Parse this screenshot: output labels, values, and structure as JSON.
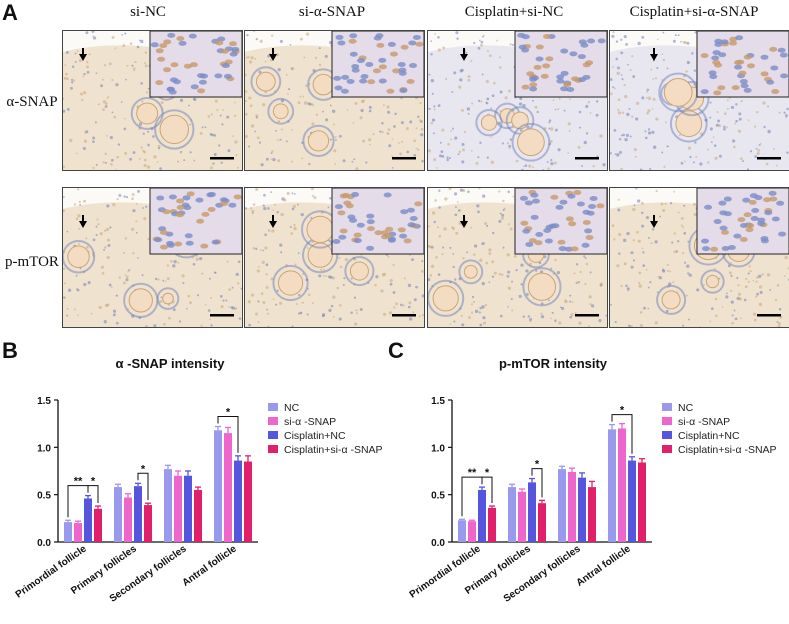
{
  "panel_a": {
    "letter": "A",
    "columns": [
      "si-NC",
      "si-α-SNAP",
      "Cisplatin+si-NC",
      "Cisplatin+si-α-SNAP"
    ],
    "rows": [
      "α-SNAP",
      "p-mTOR"
    ]
  },
  "panel_b": {
    "letter": "B"
  },
  "panel_c": {
    "letter": "C"
  },
  "colors": {
    "NC": "#9999ee",
    "si": "#ee66cc",
    "cisNC": "#5555dd",
    "cisSi": "#e0206a",
    "tissue_bg": "#efe3cf",
    "tissue_stain": "#c9a57a",
    "nuclei": "#6f7fb8"
  },
  "chart_data": [
    {
      "type": "bar",
      "title": "α -SNAP intensity",
      "categories": [
        "Primordial follicle",
        "Primary follicles",
        "Secondary follicles",
        "Antral follicle"
      ],
      "ylim": [
        0,
        1.5
      ],
      "yticks": [
        "0.0",
        "0.5",
        "1.0",
        "1.5"
      ],
      "series": [
        {
          "name": "NC",
          "values": [
            0.21,
            0.58,
            0.77,
            1.18
          ],
          "errors": [
            0.02,
            0.03,
            0.04,
            0.04
          ]
        },
        {
          "name": "si-α -SNAP",
          "values": [
            0.2,
            0.47,
            0.7,
            1.15
          ],
          "errors": [
            0.02,
            0.04,
            0.05,
            0.06
          ]
        },
        {
          "name": "Cisplatin+NC",
          "values": [
            0.46,
            0.59,
            0.7,
            0.86
          ],
          "errors": [
            0.03,
            0.03,
            0.05,
            0.05
          ]
        },
        {
          "name": "Cisplatin+si-α -SNAP",
          "values": [
            0.35,
            0.39,
            0.55,
            0.85
          ],
          "errors": [
            0.03,
            0.02,
            0.03,
            0.06
          ]
        }
      ],
      "significance": [
        {
          "label": "**",
          "group": 0,
          "from": 0,
          "to": 2
        },
        {
          "label": "*",
          "group": 0,
          "from": 2,
          "to": 3
        },
        {
          "label": "*",
          "group": 1,
          "from": 2,
          "to": 3
        },
        {
          "label": "*",
          "group": 3,
          "from": 0,
          "to": 2
        }
      ]
    },
    {
      "type": "bar",
      "title": "p-mTOR intensity",
      "categories": [
        "Primordial follicle",
        "Primary follicles",
        "Secondary follicles",
        "Antral follicle"
      ],
      "ylim": [
        0,
        1.5
      ],
      "yticks": [
        "0.0",
        "0.5",
        "1.0",
        "1.5"
      ],
      "series": [
        {
          "name": "NC",
          "values": [
            0.23,
            0.58,
            0.77,
            1.19
          ],
          "errors": [
            0.01,
            0.03,
            0.03,
            0.05
          ]
        },
        {
          "name": "si-α -SNAP",
          "values": [
            0.22,
            0.53,
            0.74,
            1.2
          ],
          "errors": [
            0.01,
            0.03,
            0.04,
            0.05
          ]
        },
        {
          "name": "Cisplatin+NC",
          "values": [
            0.55,
            0.63,
            0.68,
            0.86
          ],
          "errors": [
            0.03,
            0.04,
            0.05,
            0.04
          ]
        },
        {
          "name": "Cisplatin+si-α -SNAP",
          "values": [
            0.36,
            0.41,
            0.58,
            0.84
          ],
          "errors": [
            0.02,
            0.03,
            0.06,
            0.04
          ]
        }
      ],
      "significance": [
        {
          "label": "**",
          "group": 0,
          "from": 0,
          "to": 2
        },
        {
          "label": "*",
          "group": 0,
          "from": 2,
          "to": 3
        },
        {
          "label": "*",
          "group": 1,
          "from": 2,
          "to": 3
        },
        {
          "label": "*",
          "group": 3,
          "from": 0,
          "to": 2
        }
      ]
    }
  ]
}
